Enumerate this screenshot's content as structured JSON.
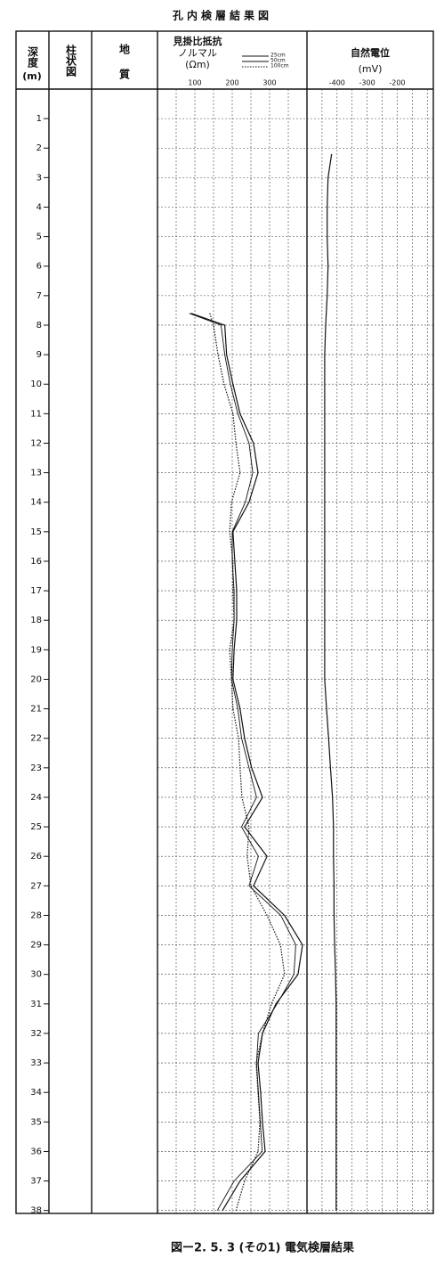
{
  "title": "孔内検層結果図",
  "header": {
    "depth": "深度",
    "depth_unit": "(m)",
    "column": "柱状図",
    "geology_1": "地",
    "geology_2": "質"
  },
  "caption": "図ー2. 5. 3 (その1) 電気検層結果",
  "chart_data": [
    {
      "type": "line",
      "title": "見掛比抵抗",
      "subtitle": "ノルマル",
      "unit": "(Ωm)",
      "depth": [
        7.6,
        8,
        9,
        10,
        11,
        12,
        13,
        14,
        15,
        16,
        17,
        18,
        19,
        20,
        21,
        22,
        23,
        24,
        25,
        26,
        27,
        28,
        29,
        30,
        31,
        32,
        33,
        34,
        35,
        36,
        37,
        38
      ],
      "series": [
        {
          "name": "25cm",
          "color": "#111111",
          "dash": "solid",
          "values": [
            90,
            180,
            185,
            202,
            221,
            257,
            269,
            245,
            202,
            207,
            212,
            212,
            205,
            202,
            221,
            233,
            252,
            281,
            233,
            293,
            257,
            340,
            388,
            376,
            317,
            281,
            269,
            276,
            281,
            288,
            221,
            174
          ]
        },
        {
          "name": "50cm",
          "color": "#111111",
          "dash": "solid",
          "values": [
            85,
            170,
            180,
            195,
            215,
            245,
            255,
            235,
            200,
            200,
            205,
            205,
            200,
            198,
            215,
            225,
            245,
            265,
            225,
            270,
            245,
            330,
            370,
            365,
            320,
            270,
            265,
            270,
            275,
            280,
            205,
            160
          ]
        },
        {
          "name": "100cm",
          "color": "#111111",
          "dash": "dotted",
          "values": [
            140,
            150,
            162,
            178,
            202,
            210,
            221,
            198,
            193,
            202,
            202,
            205,
            193,
            198,
            202,
            217,
            221,
            226,
            245,
            240,
            250,
            293,
            329,
            340,
            305,
            281,
            264,
            269,
            274,
            269,
            233,
            210
          ]
        }
      ],
      "xlim": [
        0,
        400
      ],
      "xticks": [
        100,
        200,
        300
      ],
      "minor_xticks": [
        50,
        150,
        250,
        350
      ],
      "ylim": [
        0,
        38.1
      ],
      "yticks": [
        1,
        2,
        3,
        4,
        5,
        6,
        7,
        8,
        9,
        10,
        11,
        12,
        13,
        14,
        15,
        16,
        17,
        18,
        19,
        20,
        21,
        22,
        23,
        24,
        25,
        26,
        27,
        28,
        29,
        30,
        31,
        32,
        33,
        34,
        35,
        36,
        37,
        38
      ],
      "grid": true
    },
    {
      "type": "line",
      "title": "自然電位",
      "unit": "(mV)",
      "depth": [
        2.2,
        3,
        4,
        5,
        6,
        7,
        8,
        9,
        10,
        11,
        12,
        13,
        14,
        15,
        16,
        17,
        18,
        19,
        20,
        21,
        22,
        23,
        24,
        25,
        26,
        27,
        28,
        29,
        30,
        31,
        32,
        33,
        34,
        35,
        36,
        37,
        38
      ],
      "values": [
        -418,
        -430,
        -433,
        -433,
        -430,
        -433,
        -438,
        -441,
        -441,
        -441,
        -441,
        -441,
        -441,
        -441,
        -441,
        -441,
        -441,
        -441,
        -441,
        -435,
        -428,
        -422,
        -415,
        -412,
        -412,
        -410,
        -410,
        -408,
        -405,
        -403,
        -403,
        -403,
        -403,
        -403,
        -403,
        -403,
        -403
      ],
      "color": "#111111",
      "xlim": [
        -500,
        -80
      ],
      "xticks": [
        -400,
        -300,
        -200
      ],
      "minor_xticks": [
        -450,
        -350,
        -250,
        -150,
        -100
      ],
      "ylim": [
        0,
        38.1
      ],
      "grid": true
    }
  ]
}
